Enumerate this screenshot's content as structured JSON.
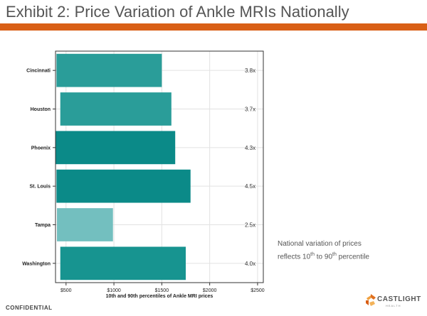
{
  "page": {
    "title": "Exhibit 2: Price Variation of Ankle MRIs Nationally",
    "accent": "#d95f16",
    "note_line1": "National variation of prices",
    "note_line2_a": "reflects 10",
    "note_sup1": "th",
    "note_line2_b": " to 90",
    "note_sup2": "th",
    "note_line2_c": " percentile",
    "footer": "CONFIDENTIAL",
    "logo_text": "CASTLIGHT",
    "logo_sub": "HEALTH"
  },
  "chart_data": {
    "type": "bar",
    "orientation": "horizontal",
    "subtype": "floating-range",
    "xlabel": "10th and 90th percentiles of Ankle MRI prices",
    "xlim": [
      390,
      2560
    ],
    "x_ticks": [
      500,
      1000,
      1500,
      2000,
      2500
    ],
    "x_tick_labels": [
      "$500",
      "$1000",
      "$1500",
      "$2000",
      "$2500"
    ],
    "grid": true,
    "categories": [
      "Cincinnati",
      "Houston",
      "Phoenix",
      "St. Louis",
      "Tampa",
      "Washington"
    ],
    "series": [
      {
        "low": [
          400,
          440,
          390,
          400,
          405,
          440
        ],
        "high": [
          1500,
          1600,
          1640,
          1800,
          990,
          1750
        ],
        "ratio_labels": [
          "3.8x",
          "3.7x",
          "4.3x",
          "4.5x",
          "2.5x",
          "4.0x"
        ],
        "colors": [
          "#2a9d99",
          "#2a9d99",
          "#0b8a88",
          "#0b8a88",
          "#73bfbf",
          "#179490"
        ]
      }
    ]
  }
}
